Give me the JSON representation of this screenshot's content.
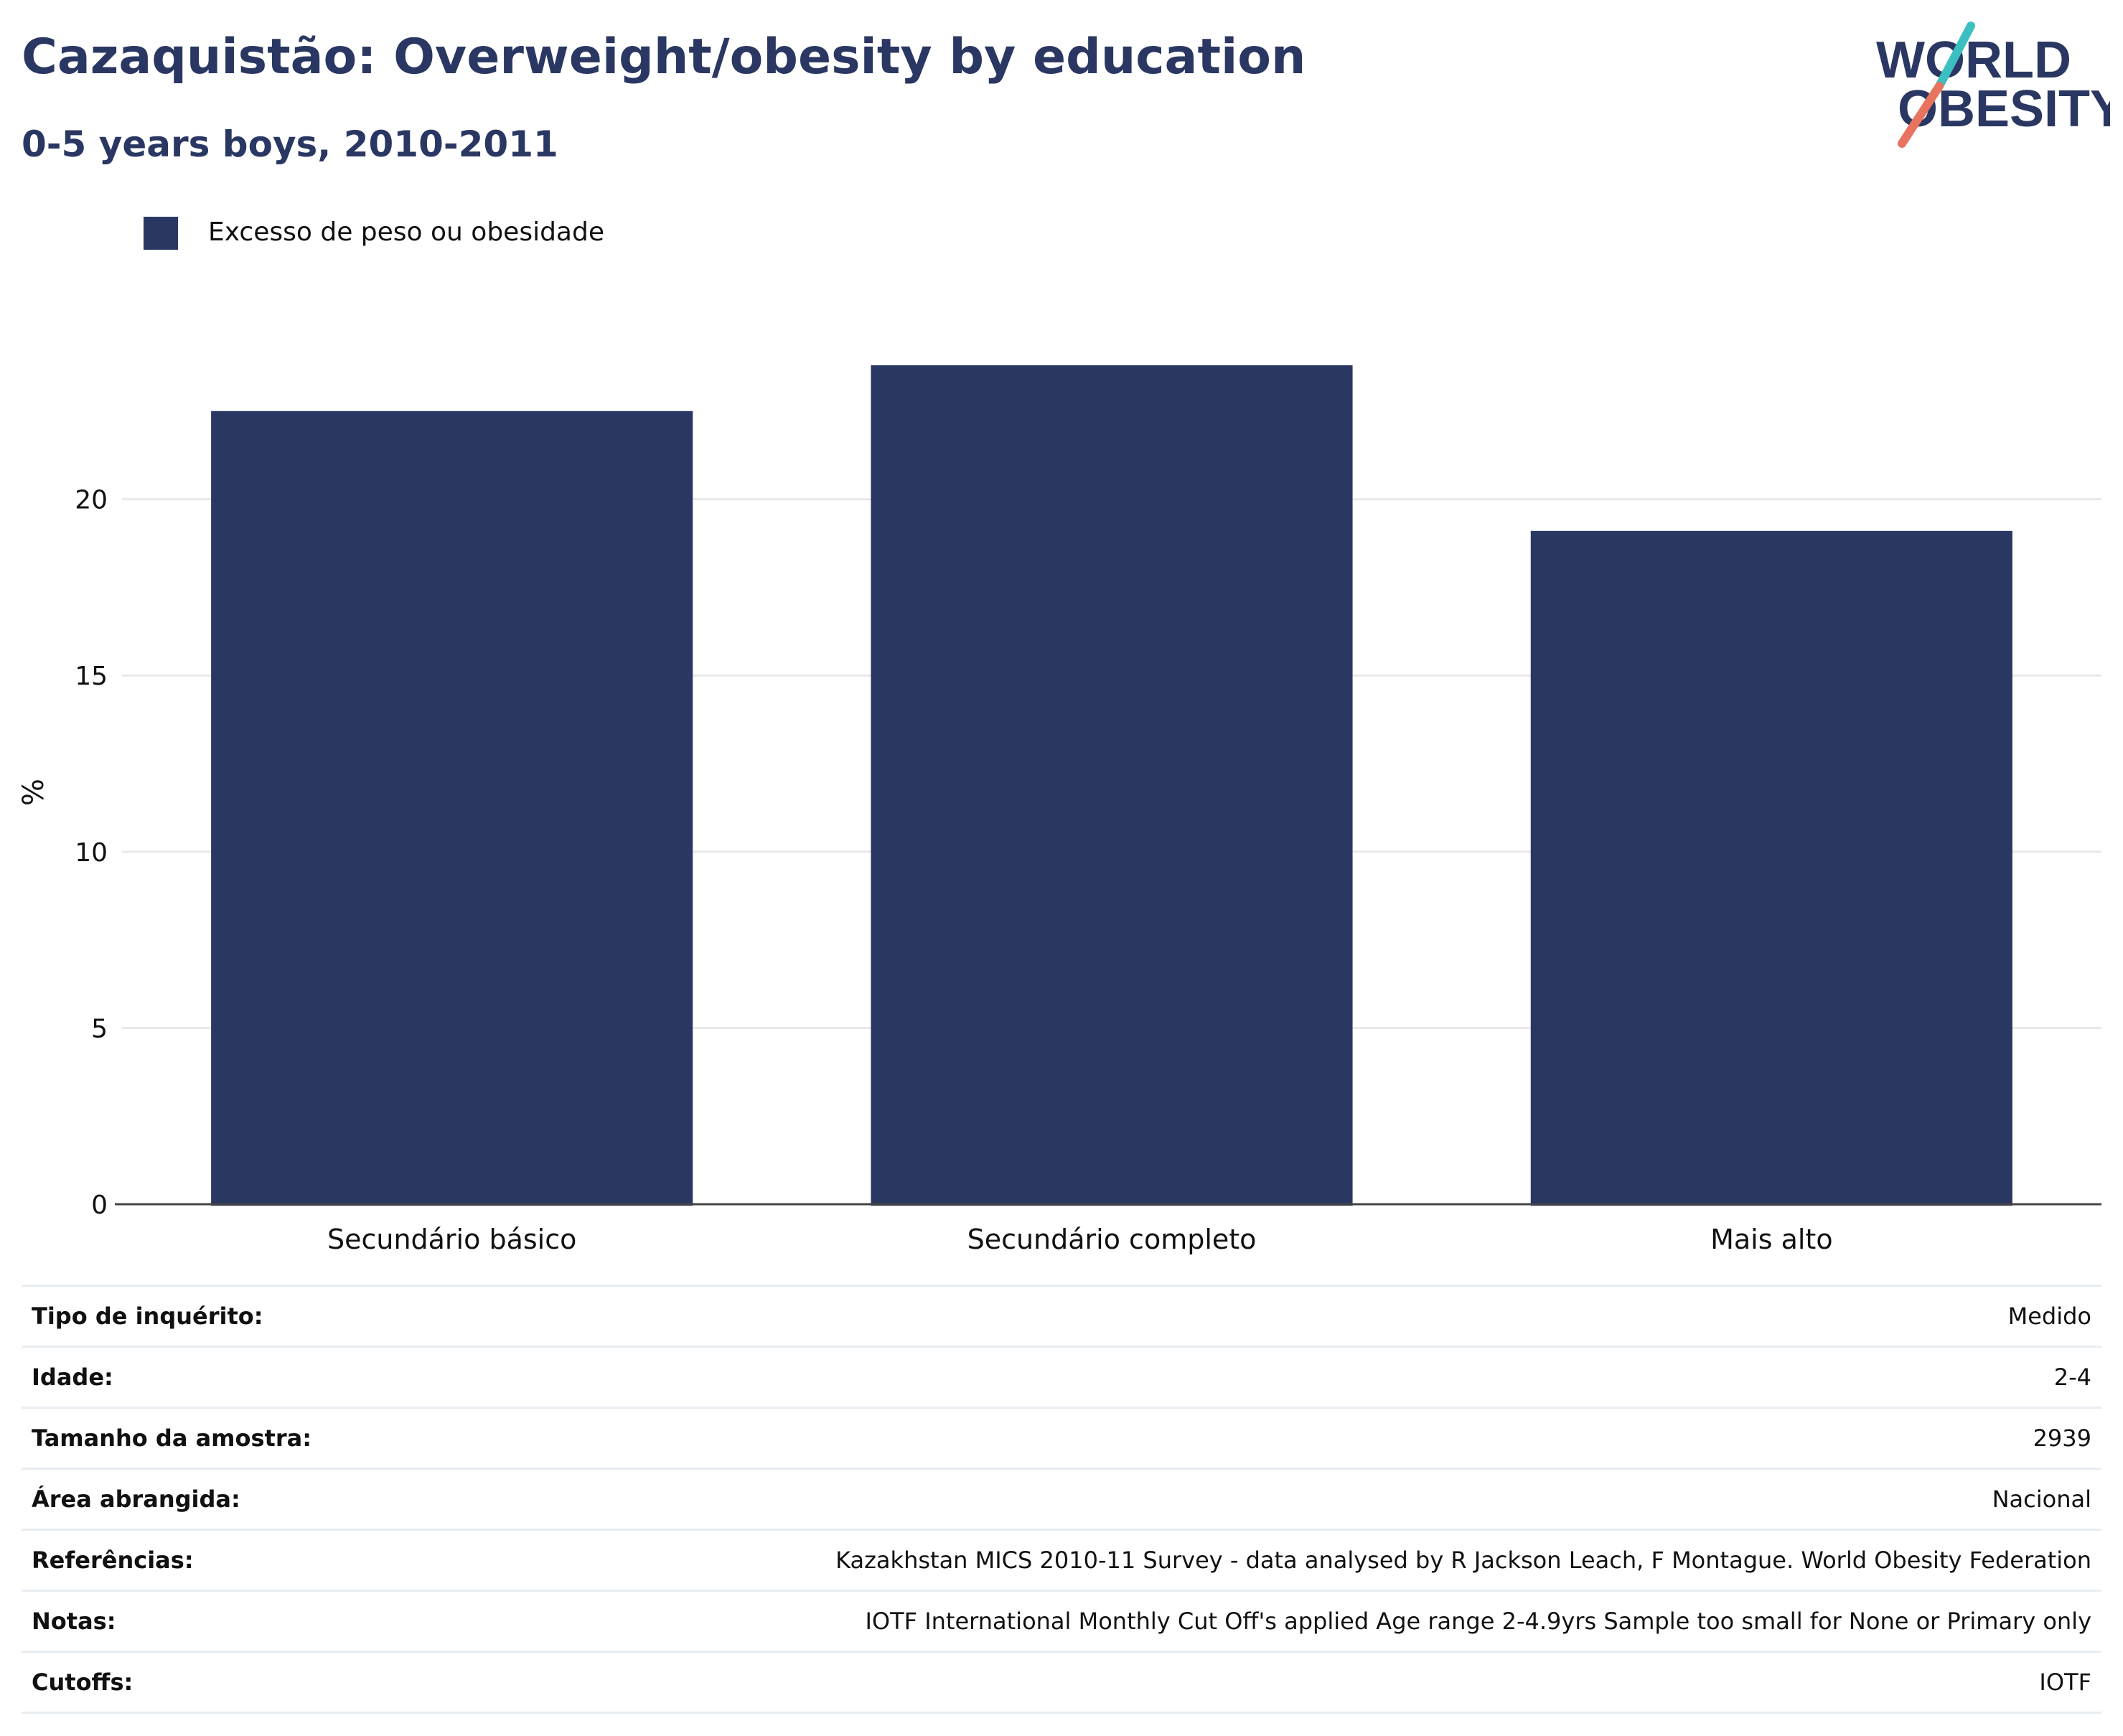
{
  "header": {
    "title": "Cazaquistão: Overweight/obesity by education",
    "subtitle": "0-5 years boys, 2010-2011",
    "logo_line1": "WORLD",
    "logo_line2": "OBESITY"
  },
  "colors": {
    "bar": "#2a3762",
    "text": "#2a3762",
    "grid": "#e8e8e8",
    "logo_teal": "#3cbfc0",
    "logo_coral": "#e8735f"
  },
  "chart_data": {
    "type": "bar",
    "categories": [
      "Secundário básico",
      "Secundário completo",
      "Mais alto"
    ],
    "series": [
      {
        "name": "Excesso de peso ou obesidade",
        "values": [
          22.5,
          23.8,
          19.1
        ]
      }
    ],
    "xlabel": "",
    "ylabel": "%",
    "ylim": [
      0,
      25
    ],
    "yticks": [
      0,
      5,
      10,
      15,
      20
    ],
    "grid": true,
    "legend": "top-left"
  },
  "info": [
    {
      "label": "Tipo de inquérito:",
      "value": "Medido"
    },
    {
      "label": "Idade:",
      "value": "2-4"
    },
    {
      "label": "Tamanho da amostra:",
      "value": "2939"
    },
    {
      "label": "Área abrangida:",
      "value": "Nacional"
    },
    {
      "label": "Referências:",
      "value": "Kazakhstan MICS 2010-11 Survey - data analysed by R Jackson Leach, F Montague. World Obesity Federation"
    },
    {
      "label": "Notas:",
      "value": "IOTF International Monthly Cut Off's applied Age range 2-4.9yrs Sample too small for None or Primary only"
    },
    {
      "label": "Cutoffs:",
      "value": "IOTF"
    }
  ]
}
